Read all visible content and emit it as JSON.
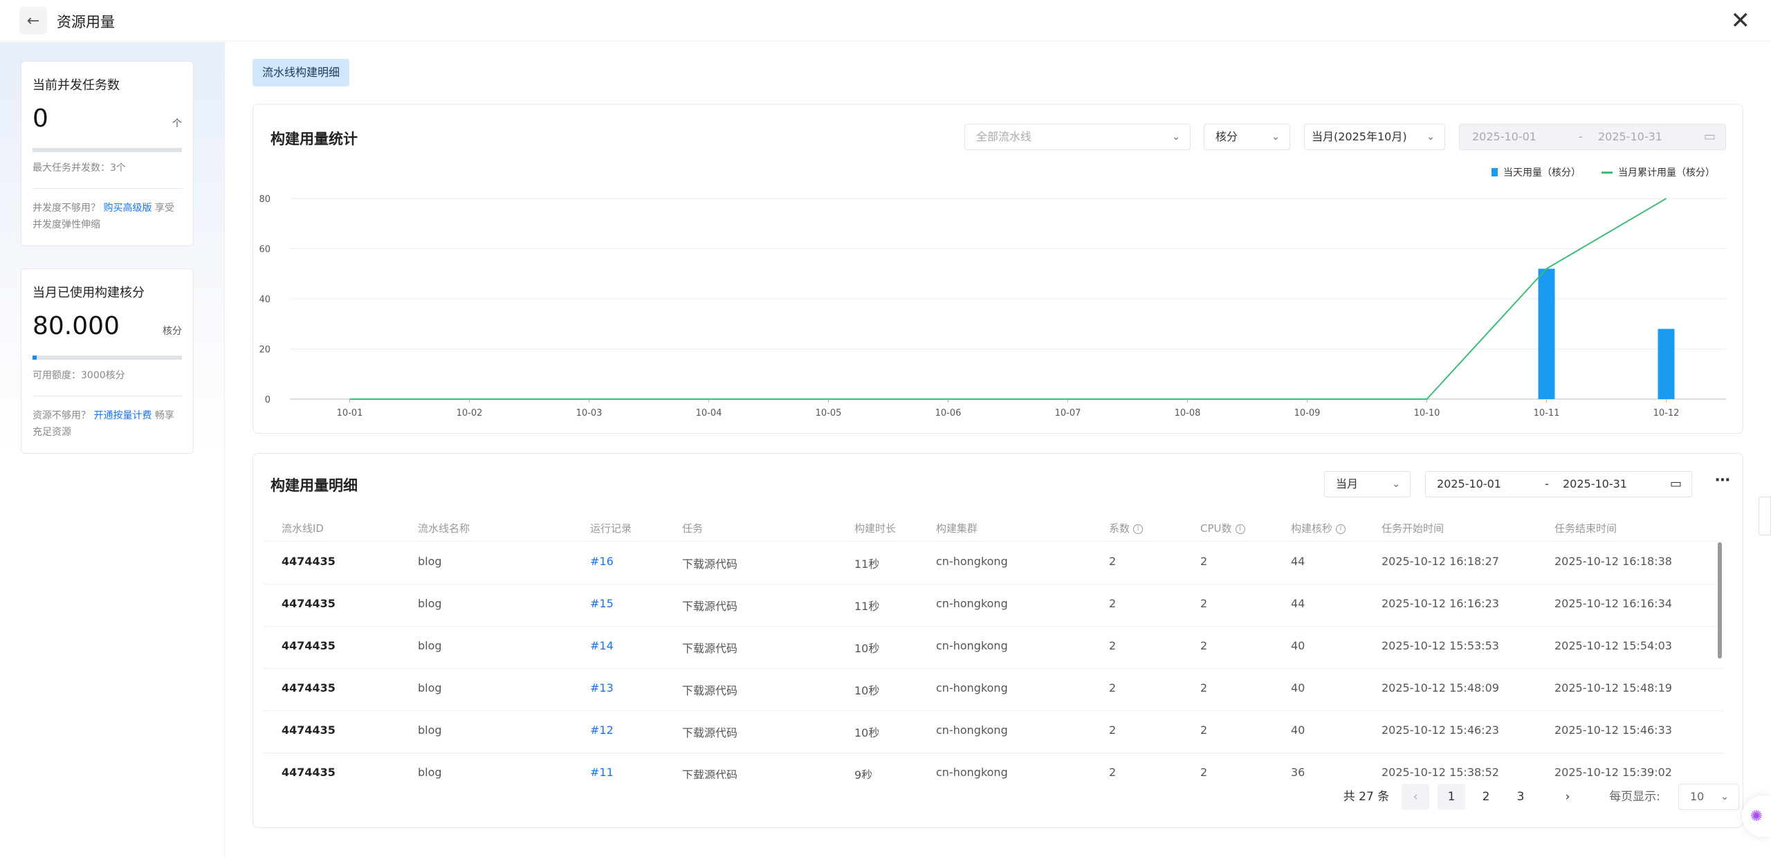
{
  "header": {
    "title": "资源用量",
    "back_icon": "arrow-left-icon",
    "close_icon": "close-icon"
  },
  "sidebar": {
    "concurrency": {
      "title": "当前并发任务数",
      "value": "0",
      "unit": "个",
      "progress": 0,
      "max_label": "最大任务并发数：3个",
      "tip_prefix": "并发度不够用？",
      "tip_link": "购买高级版",
      "tip_suffix": "享受并发度弹性伸缩"
    },
    "core_minutes": {
      "title": "当月已使用构建核分",
      "value": "80.000",
      "unit": "核分",
      "progress": 0.0267,
      "quota_label": "可用额度：3000核分",
      "tip_prefix": "资源不够用？",
      "tip_link": "开通按量计费",
      "tip_suffix": "畅享充足资源"
    }
  },
  "tab": {
    "label": "流水线构建明细"
  },
  "stats": {
    "title": "构建用量统计",
    "pipeline_select": {
      "placeholder": "全部流水线"
    },
    "unit_select": {
      "value": "核分"
    },
    "period_select": {
      "value": "当月(2025年10月)"
    },
    "date_start": "2025-10-01",
    "date_sep": "-",
    "date_end": "2025-10-31",
    "colors": {
      "bar": "#1a9af0",
      "line": "#3cbd7a"
    }
  },
  "chart_data": {
    "type": "bar",
    "categories": [
      "10-01",
      "10-02",
      "10-03",
      "10-04",
      "10-05",
      "10-06",
      "10-07",
      "10-08",
      "10-09",
      "10-10",
      "10-11",
      "10-12"
    ],
    "series": [
      {
        "name": "当天用量（核分）",
        "type": "bar",
        "values": [
          0,
          0,
          0,
          0,
          0,
          0,
          0,
          0,
          0,
          0,
          52,
          28
        ]
      },
      {
        "name": "当月累计用量（核分）",
        "type": "line",
        "values": [
          0,
          0,
          0,
          0,
          0,
          0,
          0,
          0,
          0,
          0,
          52,
          80
        ]
      }
    ],
    "ylim": [
      0,
      80
    ],
    "yticks": [
      0,
      20,
      40,
      60,
      80
    ],
    "grid": true,
    "legend": "top-right"
  },
  "detail": {
    "title": "构建用量明细",
    "period_select": {
      "value": "当月"
    },
    "date_start": "2025-10-01",
    "date_sep": "-",
    "date_end": "2025-10-31",
    "more_icon": "more-icon",
    "columns": [
      "流水线ID",
      "流水线名称",
      "运行记录",
      "任务",
      "构建时长",
      "构建集群",
      "系数",
      "CPU数",
      "构建核秒",
      "任务开始时间",
      "任务结束时间"
    ],
    "rows": [
      [
        "4474435",
        "blog",
        "#16",
        "下载源代码",
        "11秒",
        "cn-hongkong",
        "2",
        "2",
        "44",
        "2025-10-12 16:18:27",
        "2025-10-12 16:18:38"
      ],
      [
        "4474435",
        "blog",
        "#15",
        "下载源代码",
        "11秒",
        "cn-hongkong",
        "2",
        "2",
        "44",
        "2025-10-12 16:16:23",
        "2025-10-12 16:16:34"
      ],
      [
        "4474435",
        "blog",
        "#14",
        "下载源代码",
        "10秒",
        "cn-hongkong",
        "2",
        "2",
        "40",
        "2025-10-12 15:53:53",
        "2025-10-12 15:54:03"
      ],
      [
        "4474435",
        "blog",
        "#13",
        "下载源代码",
        "10秒",
        "cn-hongkong",
        "2",
        "2",
        "40",
        "2025-10-12 15:48:09",
        "2025-10-12 15:48:19"
      ],
      [
        "4474435",
        "blog",
        "#12",
        "下载源代码",
        "10秒",
        "cn-hongkong",
        "2",
        "2",
        "40",
        "2025-10-12 15:46:23",
        "2025-10-12 15:46:33"
      ],
      [
        "4474435",
        "blog",
        "#11",
        "下载源代码",
        "9秒",
        "cn-hongkong",
        "2",
        "2",
        "36",
        "2025-10-12 15:38:52",
        "2025-10-12 15:39:02"
      ]
    ],
    "pagination": {
      "total": "共 27 条",
      "pages": [
        "1",
        "2",
        "3"
      ],
      "current": "1",
      "page_size_label": "每页显示:",
      "page_size": "10"
    }
  }
}
